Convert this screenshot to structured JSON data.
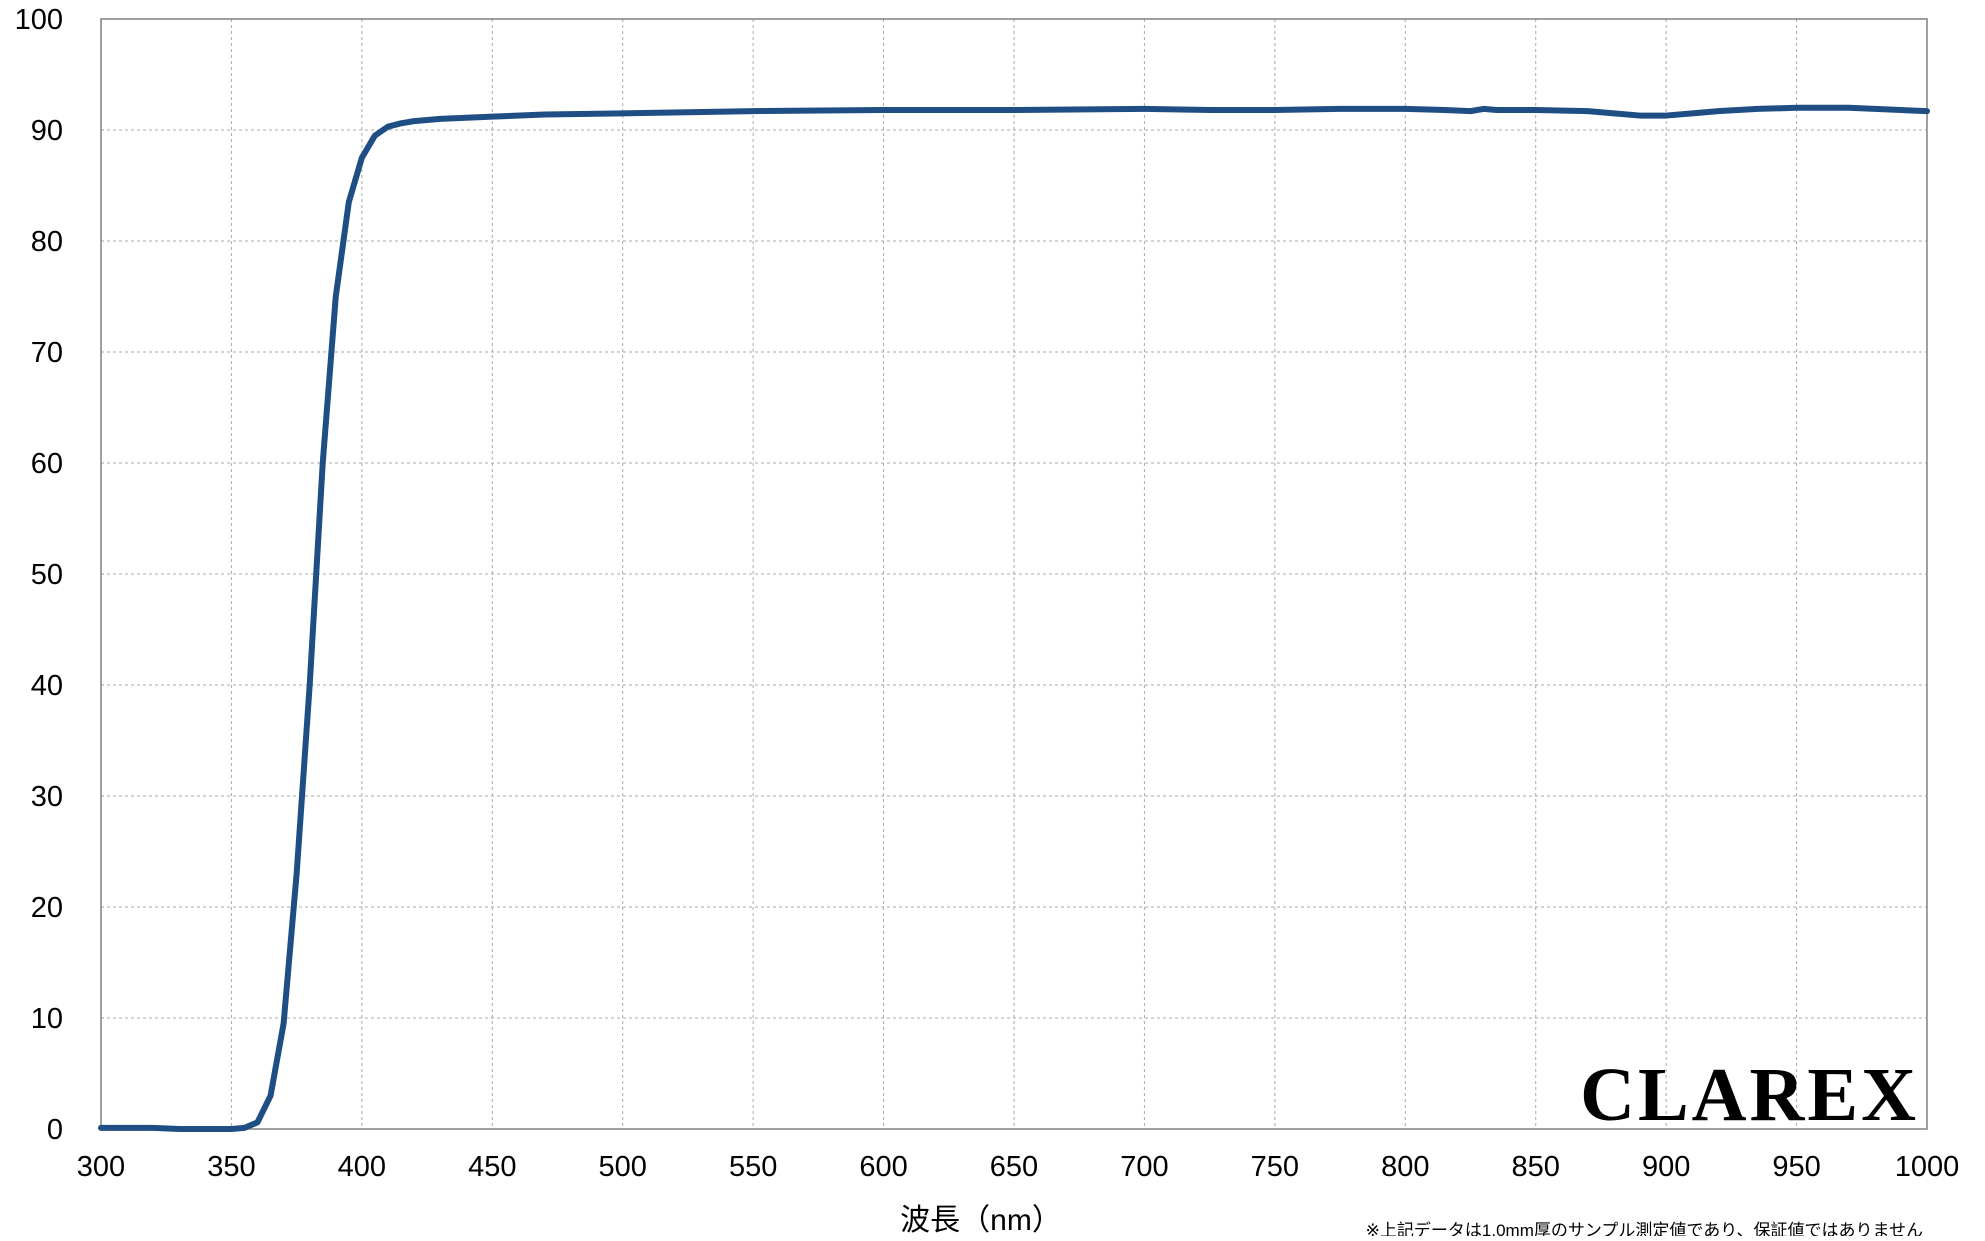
{
  "chart_data": {
    "type": "line",
    "title": "",
    "xlabel": "波長（nm）",
    "ylabel": "",
    "xlim": [
      300,
      1000
    ],
    "ylim": [
      0,
      100
    ],
    "x_ticks": [
      300,
      350,
      400,
      450,
      500,
      550,
      600,
      650,
      700,
      750,
      800,
      850,
      900,
      950,
      1000
    ],
    "y_ticks": [
      0,
      10,
      20,
      30,
      40,
      50,
      60,
      70,
      80,
      90,
      100
    ],
    "grid": true,
    "legend": "none",
    "colors": {
      "series": "#1f4e85",
      "grid": "#aaaaaa",
      "axis": "#808080",
      "logo": "#1f4e85"
    },
    "series": [
      {
        "x": [
          300,
          310,
          320,
          330,
          340,
          350,
          355,
          360,
          365,
          370,
          375,
          380,
          385,
          390,
          395,
          400,
          405,
          410,
          415,
          420,
          430,
          440,
          450,
          470,
          500,
          525,
          550,
          600,
          650,
          700,
          725,
          750,
          775,
          800,
          815,
          825,
          830,
          835,
          850,
          870,
          880,
          890,
          900,
          910,
          920,
          935,
          950,
          970,
          990,
          1000
        ],
        "y": [
          0.1,
          0.1,
          0.1,
          0,
          0,
          0,
          0.1,
          0.6,
          3,
          9.5,
          23,
          40,
          60,
          75,
          83.5,
          87.5,
          89.5,
          90.3,
          90.6,
          90.8,
          91,
          91.1,
          91.2,
          91.4,
          91.5,
          91.6,
          91.7,
          91.8,
          91.8,
          91.9,
          91.8,
          91.8,
          91.9,
          91.9,
          91.8,
          91.7,
          91.9,
          91.8,
          91.8,
          91.7,
          91.5,
          91.3,
          91.3,
          91.5,
          91.7,
          91.9,
          92,
          92,
          91.8,
          91.7
        ]
      }
    ],
    "note": "※上記データは1.0mm厚のサンプル測定値であり、保証値ではありません",
    "logo": "CLAREX"
  }
}
